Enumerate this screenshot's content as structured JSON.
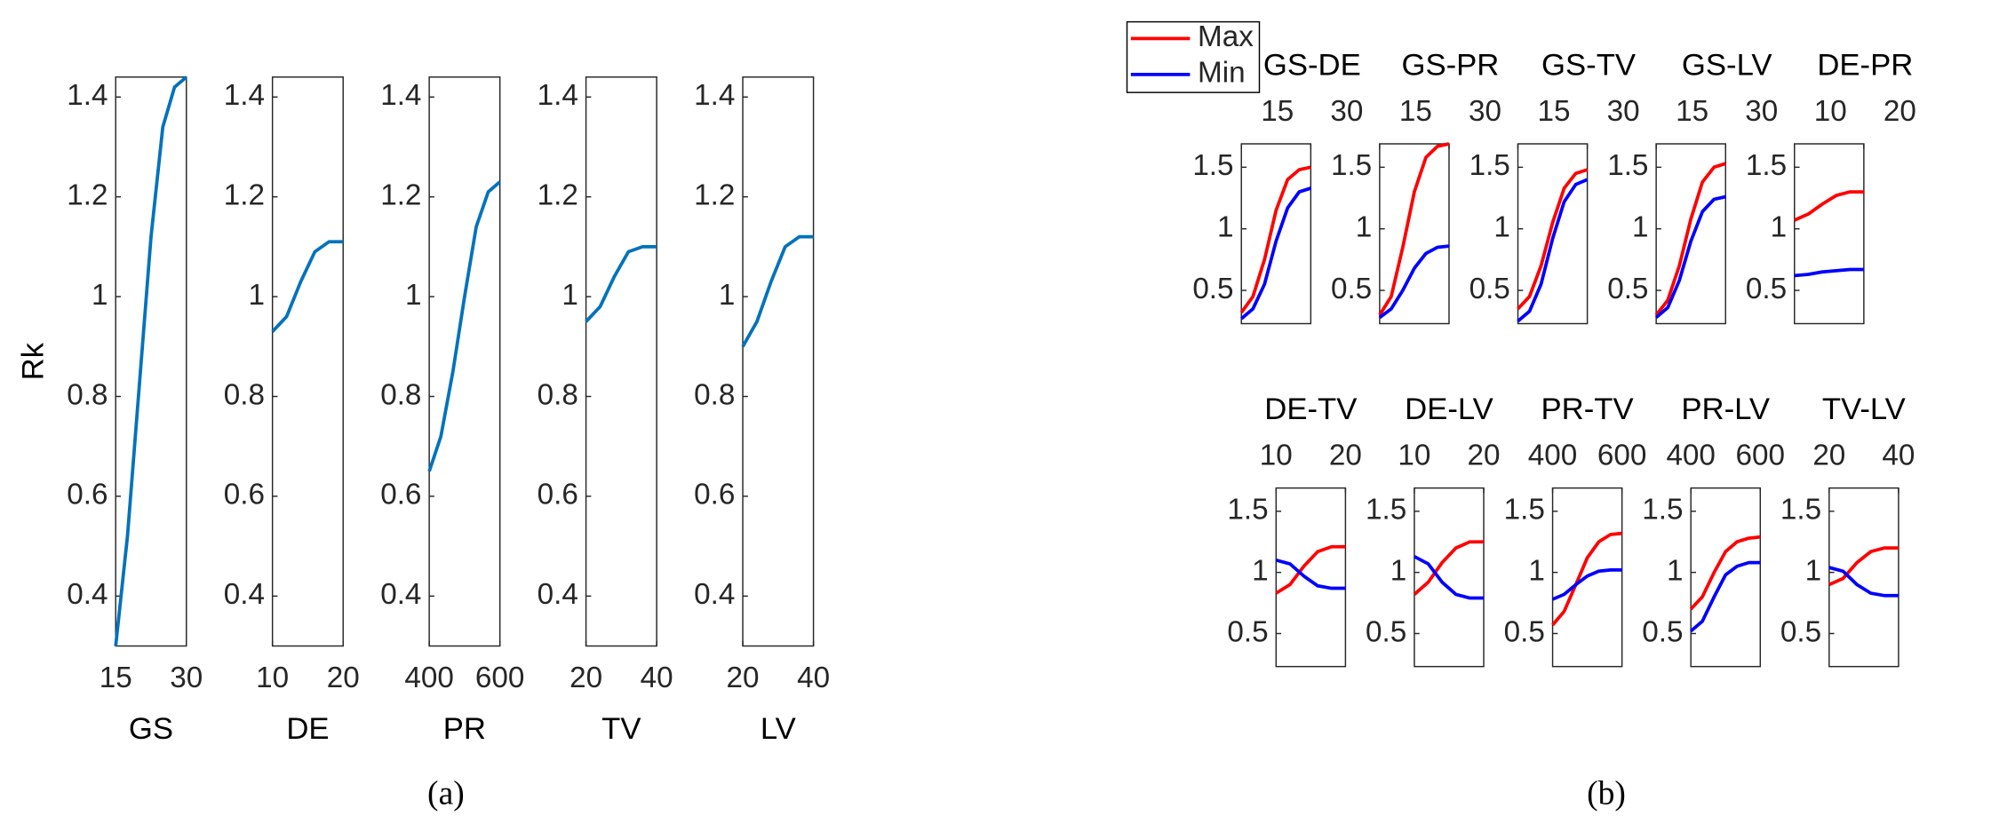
{
  "figure_labels": [
    "(a)",
    "(b)"
  ],
  "chart_data": [
    {
      "type": "line",
      "xlabel": "GS",
      "ylabel": "Rk",
      "x": [
        15,
        17.5,
        20,
        22.5,
        25,
        27.5,
        30
      ],
      "values": [
        0.3,
        0.52,
        0.82,
        1.12,
        1.34,
        1.42,
        1.44
      ],
      "color": "#0072bd",
      "xlim": [
        15,
        30
      ],
      "ylim": [
        0.3,
        1.44
      ],
      "xticks": [
        15,
        30
      ],
      "yticks": [
        0.4,
        0.6,
        0.8,
        1,
        1.2,
        1.4
      ],
      "xaxis": "bottom"
    },
    {
      "type": "line",
      "xlabel": "DE",
      "x": [
        10,
        12,
        14,
        16,
        18,
        20
      ],
      "values": [
        0.93,
        0.96,
        1.03,
        1.09,
        1.11,
        1.11
      ],
      "color": "#0072bd",
      "xlim": [
        10,
        20
      ],
      "ylim": [
        0.3,
        1.44
      ],
      "xticks": [
        10,
        20
      ],
      "yticks": [
        0.4,
        0.6,
        0.8,
        1,
        1.2,
        1.4
      ],
      "xaxis": "bottom"
    },
    {
      "type": "line",
      "xlabel": "PR",
      "x": [
        400,
        433,
        467,
        500,
        533,
        567,
        600
      ],
      "values": [
        0.65,
        0.72,
        0.85,
        1.0,
        1.14,
        1.21,
        1.23
      ],
      "color": "#0072bd",
      "xlim": [
        400,
        600
      ],
      "ylim": [
        0.3,
        1.44
      ],
      "xticks": [
        400,
        600
      ],
      "yticks": [
        0.4,
        0.6,
        0.8,
        1,
        1.2,
        1.4
      ],
      "xaxis": "bottom"
    },
    {
      "type": "line",
      "xlabel": "TV",
      "x": [
        20,
        24,
        28,
        32,
        36,
        40
      ],
      "values": [
        0.95,
        0.98,
        1.04,
        1.09,
        1.1,
        1.1
      ],
      "color": "#0072bd",
      "xlim": [
        20,
        40
      ],
      "ylim": [
        0.3,
        1.44
      ],
      "xticks": [
        20,
        40
      ],
      "yticks": [
        0.4,
        0.6,
        0.8,
        1,
        1.2,
        1.4
      ],
      "xaxis": "bottom"
    },
    {
      "type": "line",
      "xlabel": "LV",
      "x": [
        20,
        24,
        28,
        32,
        36,
        40
      ],
      "values": [
        0.9,
        0.95,
        1.03,
        1.1,
        1.12,
        1.12
      ],
      "color": "#0072bd",
      "xlim": [
        20,
        40
      ],
      "ylim": [
        0.3,
        1.44
      ],
      "xticks": [
        20,
        40
      ],
      "yticks": [
        0.4,
        0.6,
        0.8,
        1,
        1.2,
        1.4
      ],
      "xaxis": "bottom"
    },
    {
      "type": "line",
      "title": "GS-DE",
      "legend": "outside-left",
      "x": [
        15,
        17.5,
        20,
        22.5,
        25,
        27.5,
        30
      ],
      "series": [
        {
          "name": "Max",
          "color": "#ff0000",
          "values": [
            0.32,
            0.45,
            0.75,
            1.15,
            1.4,
            1.48,
            1.5
          ]
        },
        {
          "name": "Min",
          "color": "#0000ff",
          "values": [
            0.27,
            0.35,
            0.55,
            0.9,
            1.17,
            1.3,
            1.33
          ]
        }
      ],
      "xlim": [
        15,
        30
      ],
      "ylim": [
        0.23,
        1.69
      ],
      "xticks": [
        15,
        30
      ],
      "yticks": [
        0.5,
        1,
        1.5
      ],
      "xaxis": "top"
    },
    {
      "type": "line",
      "title": "GS-PR",
      "x": [
        15,
        17.5,
        20,
        22.5,
        25,
        27.5,
        30
      ],
      "series": [
        {
          "name": "Max",
          "color": "#ff0000",
          "values": [
            0.3,
            0.45,
            0.85,
            1.3,
            1.58,
            1.67,
            1.69
          ]
        },
        {
          "name": "Min",
          "color": "#0000ff",
          "values": [
            0.28,
            0.35,
            0.5,
            0.68,
            0.8,
            0.85,
            0.86
          ]
        }
      ],
      "xlim": [
        15,
        30
      ],
      "ylim": [
        0.23,
        1.69
      ],
      "xticks": [
        15,
        30
      ],
      "yticks": [
        0.5,
        1,
        1.5
      ],
      "xaxis": "top"
    },
    {
      "type": "line",
      "title": "GS-TV",
      "x": [
        15,
        17.5,
        20,
        22.5,
        25,
        27.5,
        30
      ],
      "series": [
        {
          "name": "Max",
          "color": "#ff0000",
          "values": [
            0.35,
            0.45,
            0.7,
            1.05,
            1.33,
            1.45,
            1.48
          ]
        },
        {
          "name": "Min",
          "color": "#0000ff",
          "values": [
            0.25,
            0.33,
            0.55,
            0.92,
            1.22,
            1.36,
            1.4
          ]
        }
      ],
      "xlim": [
        15,
        30
      ],
      "ylim": [
        0.23,
        1.69
      ],
      "xticks": [
        15,
        30
      ],
      "yticks": [
        0.5,
        1,
        1.5
      ],
      "xaxis": "top"
    },
    {
      "type": "line",
      "title": "GS-LV",
      "x": [
        15,
        17.5,
        20,
        22.5,
        25,
        27.5,
        30
      ],
      "series": [
        {
          "name": "Max",
          "color": "#ff0000",
          "values": [
            0.3,
            0.42,
            0.7,
            1.08,
            1.38,
            1.5,
            1.53
          ]
        },
        {
          "name": "Min",
          "color": "#0000ff",
          "values": [
            0.28,
            0.36,
            0.58,
            0.9,
            1.14,
            1.24,
            1.26
          ]
        }
      ],
      "xlim": [
        15,
        30
      ],
      "ylim": [
        0.23,
        1.69
      ],
      "xticks": [
        15,
        30
      ],
      "yticks": [
        0.5,
        1,
        1.5
      ],
      "xaxis": "top"
    },
    {
      "type": "line",
      "title": "DE-PR",
      "x": [
        10,
        12,
        14,
        16,
        18,
        20
      ],
      "series": [
        {
          "name": "Max",
          "color": "#ff0000",
          "values": [
            1.07,
            1.12,
            1.2,
            1.27,
            1.3,
            1.3
          ]
        },
        {
          "name": "Min",
          "color": "#0000ff",
          "values": [
            0.62,
            0.63,
            0.65,
            0.66,
            0.67,
            0.67
          ]
        }
      ],
      "xlim": [
        10,
        20
      ],
      "ylim": [
        0.23,
        1.69
      ],
      "xticks": [
        10,
        20
      ],
      "yticks": [
        0.5,
        1,
        1.5
      ],
      "xaxis": "top"
    },
    {
      "type": "line",
      "title": "DE-TV",
      "x": [
        10,
        12,
        14,
        16,
        18,
        20
      ],
      "series": [
        {
          "name": "Max",
          "color": "#ff0000",
          "values": [
            0.83,
            0.9,
            1.05,
            1.17,
            1.21,
            1.21
          ]
        },
        {
          "name": "Min",
          "color": "#0000ff",
          "values": [
            1.1,
            1.07,
            0.97,
            0.89,
            0.87,
            0.87
          ]
        }
      ],
      "xlim": [
        10,
        20
      ],
      "ylim": [
        0.23,
        1.69
      ],
      "xticks": [
        10,
        20
      ],
      "yticks": [
        0.5,
        1,
        1.5
      ],
      "xaxis": "top"
    },
    {
      "type": "line",
      "title": "DE-LV",
      "x": [
        10,
        12,
        14,
        16,
        18,
        20
      ],
      "series": [
        {
          "name": "Max",
          "color": "#ff0000",
          "values": [
            0.82,
            0.92,
            1.08,
            1.2,
            1.25,
            1.25
          ]
        },
        {
          "name": "Min",
          "color": "#0000ff",
          "values": [
            1.13,
            1.07,
            0.92,
            0.82,
            0.79,
            0.79
          ]
        }
      ],
      "xlim": [
        10,
        20
      ],
      "ylim": [
        0.23,
        1.69
      ],
      "xticks": [
        10,
        20
      ],
      "yticks": [
        0.5,
        1,
        1.5
      ],
      "xaxis": "top"
    },
    {
      "type": "line",
      "title": "PR-TV",
      "x": [
        400,
        433,
        467,
        500,
        533,
        567,
        600
      ],
      "series": [
        {
          "name": "Max",
          "color": "#ff0000",
          "values": [
            0.57,
            0.68,
            0.9,
            1.12,
            1.25,
            1.31,
            1.32
          ]
        },
        {
          "name": "Min",
          "color": "#0000ff",
          "values": [
            0.78,
            0.82,
            0.9,
            0.97,
            1.01,
            1.02,
            1.02
          ]
        }
      ],
      "xlim": [
        400,
        600
      ],
      "ylim": [
        0.23,
        1.69
      ],
      "xticks": [
        400,
        600
      ],
      "yticks": [
        0.5,
        1,
        1.5
      ],
      "xaxis": "top"
    },
    {
      "type": "line",
      "title": "PR-LV",
      "x": [
        400,
        433,
        467,
        500,
        533,
        567,
        600
      ],
      "series": [
        {
          "name": "Max",
          "color": "#ff0000",
          "values": [
            0.7,
            0.8,
            1.0,
            1.17,
            1.25,
            1.28,
            1.29
          ]
        },
        {
          "name": "Min",
          "color": "#0000ff",
          "values": [
            0.52,
            0.6,
            0.8,
            0.98,
            1.05,
            1.08,
            1.08
          ]
        }
      ],
      "xlim": [
        400,
        600
      ],
      "ylim": [
        0.23,
        1.69
      ],
      "xticks": [
        400,
        600
      ],
      "yticks": [
        0.5,
        1,
        1.5
      ],
      "xaxis": "top"
    },
    {
      "type": "line",
      "title": "TV-LV",
      "x": [
        20,
        24,
        28,
        32,
        36,
        40
      ],
      "series": [
        {
          "name": "Max",
          "color": "#ff0000",
          "values": [
            0.9,
            0.95,
            1.08,
            1.17,
            1.2,
            1.2
          ]
        },
        {
          "name": "Min",
          "color": "#0000ff",
          "values": [
            1.04,
            1.01,
            0.9,
            0.83,
            0.81,
            0.81
          ]
        }
      ],
      "xlim": [
        20,
        40
      ],
      "ylim": [
        0.23,
        1.69
      ],
      "xticks": [
        20,
        40
      ],
      "yticks": [
        0.5,
        1,
        1.5
      ],
      "xaxis": "top"
    }
  ]
}
